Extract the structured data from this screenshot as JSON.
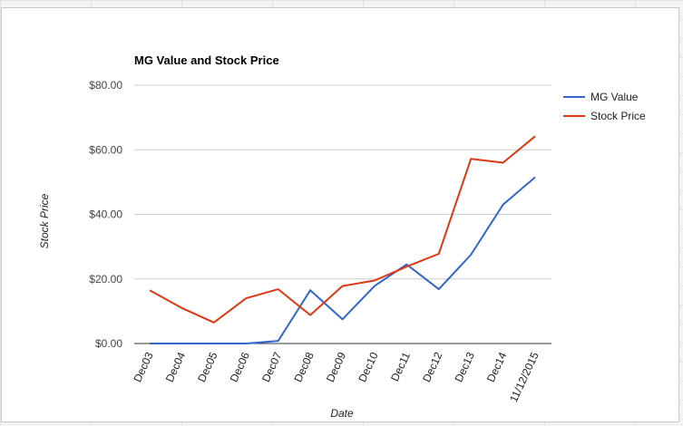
{
  "chart_data": {
    "type": "line",
    "title": "MG Value and Stock Price",
    "xlabel": "Date",
    "ylabel": "Stock Price",
    "categories": [
      "Dec03",
      "Dec04",
      "Dec05",
      "Dec06",
      "Dec07",
      "Dec08",
      "Dec09",
      "Dec10",
      "Dec11",
      "Dec12",
      "Dec13",
      "Dec14",
      "11/12/2015"
    ],
    "ylim": [
      0,
      80
    ],
    "yticks": [
      {
        "value": 0,
        "label": "$0.00"
      },
      {
        "value": 20,
        "label": "$20.00"
      },
      {
        "value": 40,
        "label": "$40.00"
      },
      {
        "value": 60,
        "label": "$60.00"
      },
      {
        "value": 80,
        "label": "$80.00"
      }
    ],
    "grid": true,
    "legend": "right",
    "series": [
      {
        "name": "MG Value",
        "color": "#3366cc",
        "values": [
          0,
          0,
          0,
          0,
          0.8,
          16.5,
          7.5,
          17.8,
          24.5,
          16.8,
          27.5,
          43,
          51.5
        ]
      },
      {
        "name": "Stock Price",
        "color": "#dc3912",
        "values": [
          16.5,
          11,
          6.5,
          14,
          16.8,
          8.8,
          17.8,
          19.5,
          23.8,
          27.8,
          57.2,
          56,
          64.2
        ]
      }
    ]
  }
}
